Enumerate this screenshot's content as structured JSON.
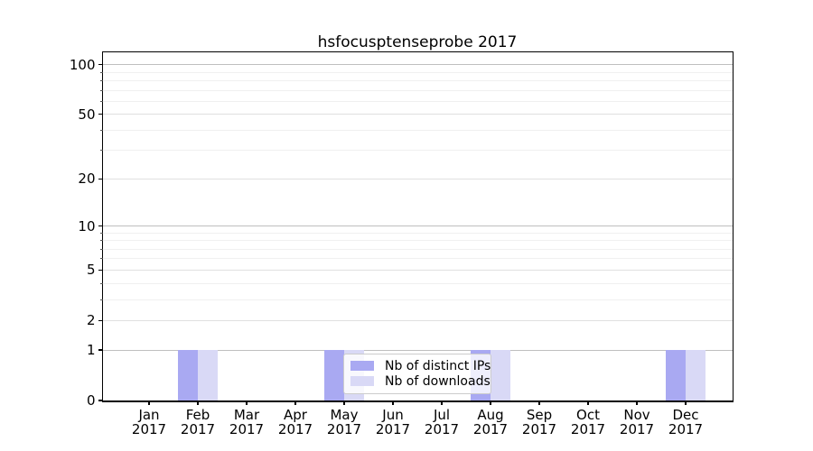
{
  "chart_data": {
    "type": "bar",
    "title": "hsfocusptenseprobe 2017",
    "x_axis": {
      "categories": [
        "Jan",
        "Feb",
        "Mar",
        "Apr",
        "May",
        "Jun",
        "Jul",
        "Aug",
        "Sep",
        "Oct",
        "Nov",
        "Dec"
      ],
      "year_suffix": "2017"
    },
    "y_axis": {
      "scale": "log1p",
      "ticks": [
        0,
        1,
        2,
        5,
        10,
        20,
        50,
        100
      ],
      "minor_ticks": [
        3,
        4,
        6,
        7,
        8,
        9,
        30,
        40,
        60,
        70,
        80,
        90
      ],
      "ylim": [
        0,
        118
      ],
      "grid": true
    },
    "series": [
      {
        "name": "Nb of distinct IPs",
        "color": "#a9a9f2",
        "values": [
          0,
          1,
          0,
          0,
          1,
          0,
          0,
          1,
          0,
          0,
          0,
          1
        ]
      },
      {
        "name": "Nb of downloads",
        "color": "#d9d9f6",
        "values": [
          0,
          1,
          0,
          0,
          1,
          0,
          0,
          1,
          0,
          0,
          0,
          1
        ]
      }
    ],
    "legend": {
      "position": "lower center"
    }
  }
}
